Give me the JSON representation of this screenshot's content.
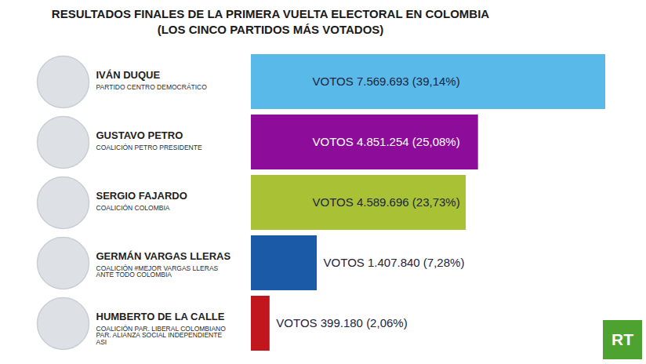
{
  "chart_data": {
    "type": "bar",
    "orientation": "horizontal",
    "title": "RESULTADOS FINALES DE LA PRIMERA VUELTA ELECTORAL EN COLOMBIA",
    "subtitle": "(LOS CINCO PARTIDOS MÁS VOTADOS)",
    "categories": [
      "IVÁN DUQUE",
      "GUSTAVO PETRO",
      "SERGIO FAJARDO",
      "GERMÁN VARGAS LLERAS",
      "HUMBERTO DE LA CALLE"
    ],
    "parties": [
      "PARTIDO CENTRO DEMOCRÁTICO",
      "COALICIÓN PETRO PRESIDENTE",
      "COALICIÓN COLOMBIA",
      "COALICIÓN #MEJOR VARGAS LLERAS ANTE TODO COLOMBIA",
      "COALICIÓN PAR. LIBERAL COLOMBIANO PAR. ALIANZA SOCIAL INDEPENDIENTE ASI"
    ],
    "values": [
      7569693,
      4851254,
      4589696,
      1407840,
      399180
    ],
    "value_labels": [
      "VOTOS 7.569.693 (39,14%)",
      "VOTOS 4.851.254 (25,08%)",
      "VOTOS 4.589.696 (23,73%)",
      "VOTOS 1.407.840 (7,28%)",
      "VOTOS 399.180 (2,06%)"
    ],
    "colors": [
      "#59b9e8",
      "#8d0c99",
      "#a9c134",
      "#1b5aa6",
      "#c2161f"
    ],
    "xlim": [
      0,
      7569693
    ],
    "tick_labels": false,
    "data_labels": true,
    "logo": "RT"
  }
}
